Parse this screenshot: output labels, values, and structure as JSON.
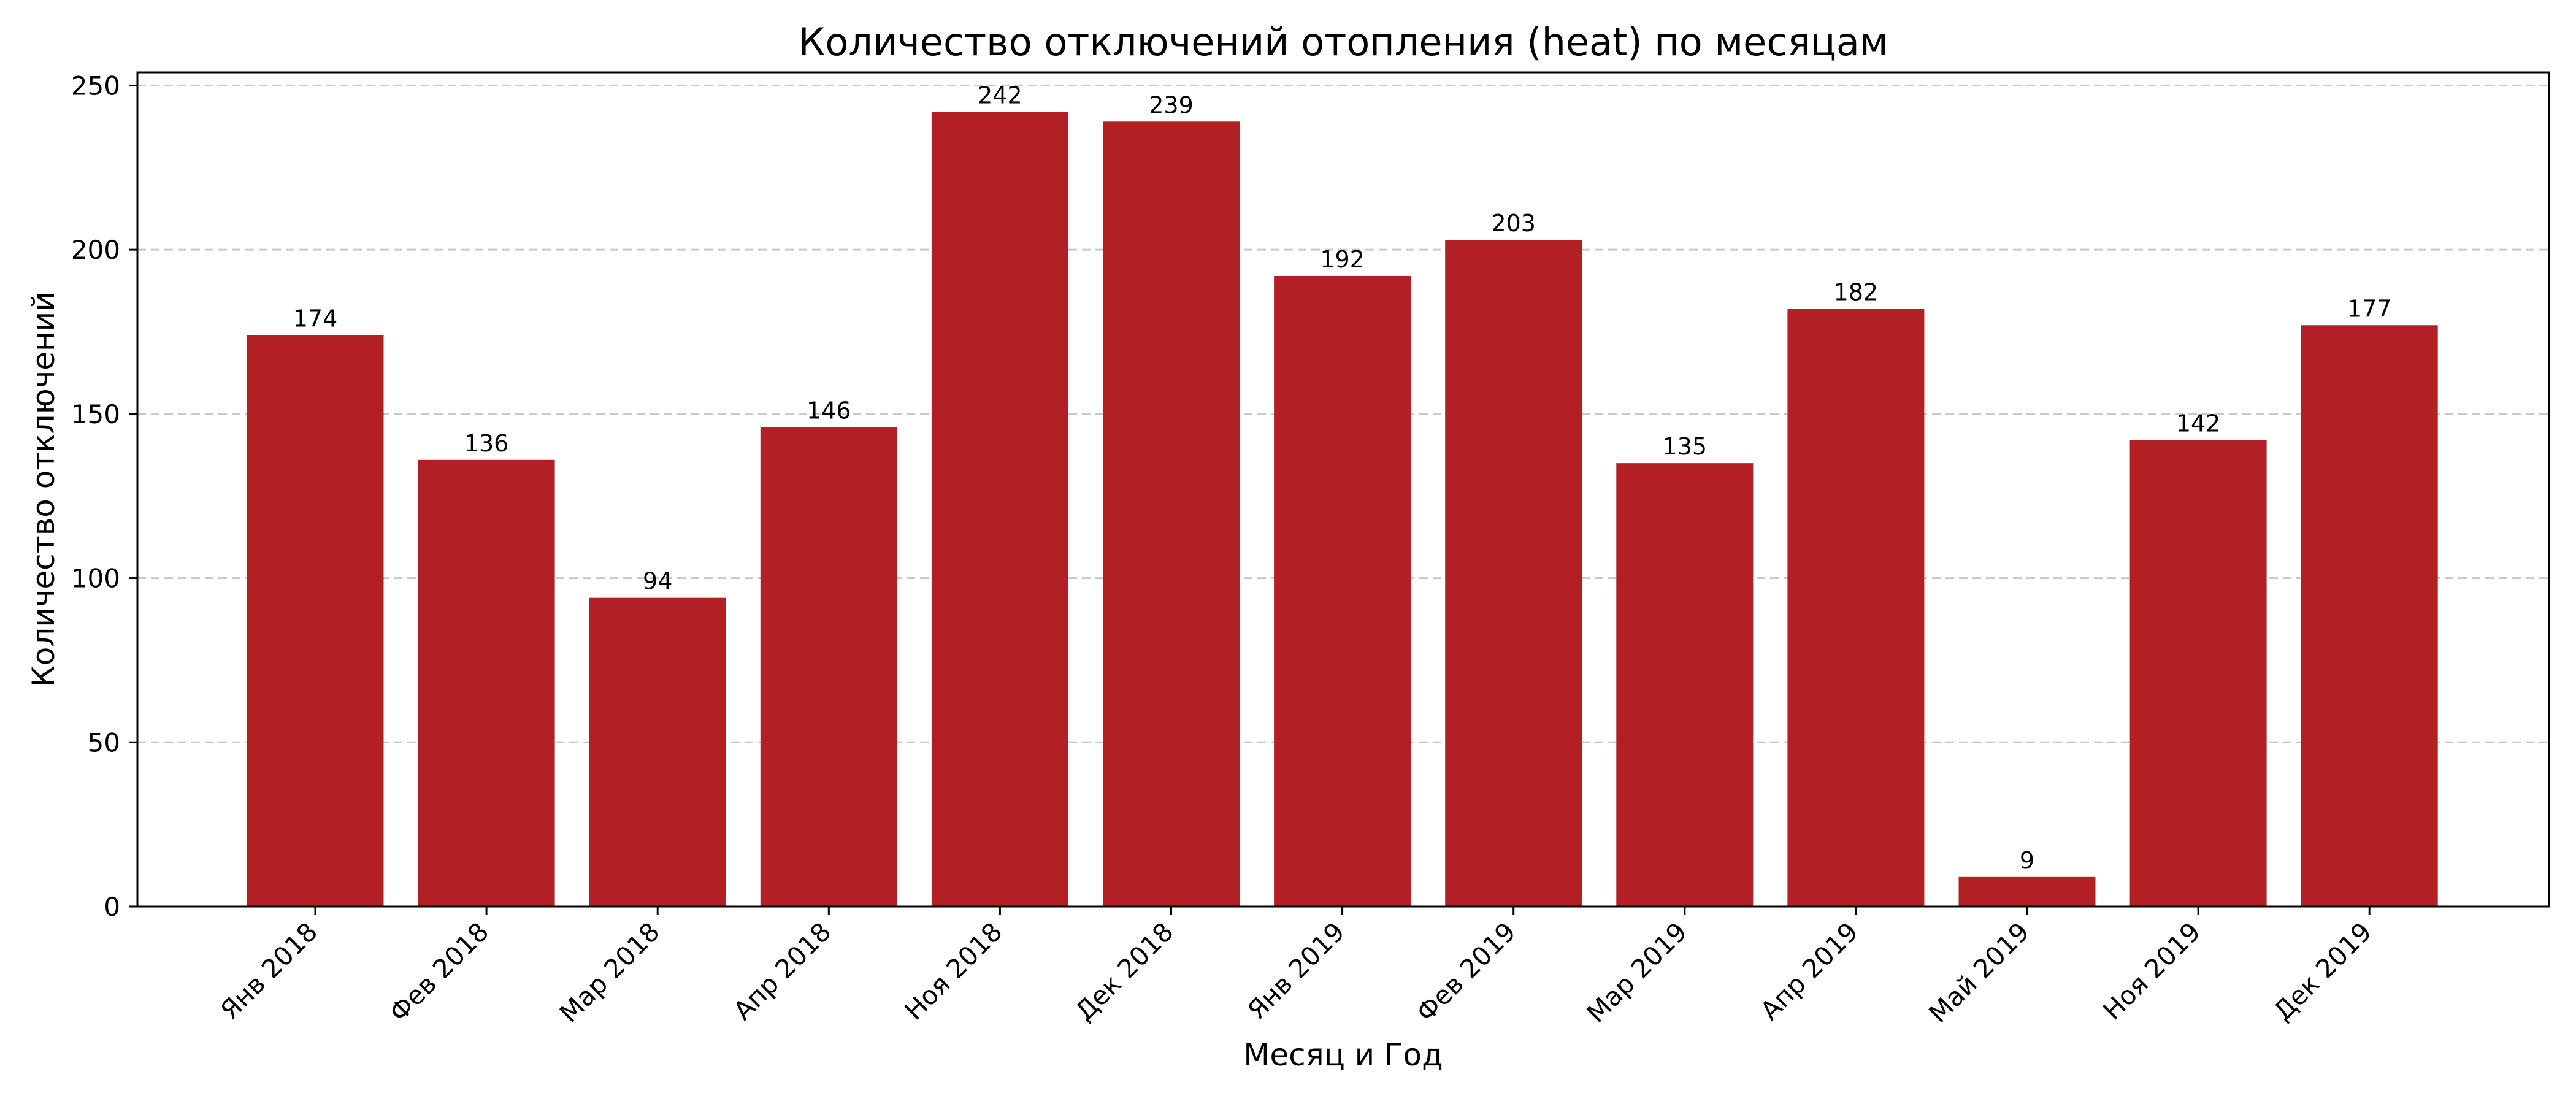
{
  "chart_data": {
    "type": "bar",
    "title": "Количество отключений отопления (heat) по месяцам",
    "xlabel": "Месяц и Год",
    "ylabel": "Количество отключений",
    "categories": [
      "Янв 2018",
      "Фев 2018",
      "Мар 2018",
      "Апр 2018",
      "Ноя 2018",
      "Дек 2018",
      "Янв 2019",
      "Фев 2019",
      "Мар 2019",
      "Апр 2019",
      "Май 2019",
      "Ноя 2019",
      "Дек 2019"
    ],
    "values": [
      174,
      136,
      94,
      146,
      242,
      239,
      192,
      203,
      135,
      182,
      9,
      142,
      177
    ],
    "ylim": [
      0,
      254
    ],
    "yticks": [
      0,
      50,
      100,
      150,
      200,
      250
    ],
    "grid": "y-dashed",
    "bar_color": "#b22024",
    "data_labels": true
  }
}
